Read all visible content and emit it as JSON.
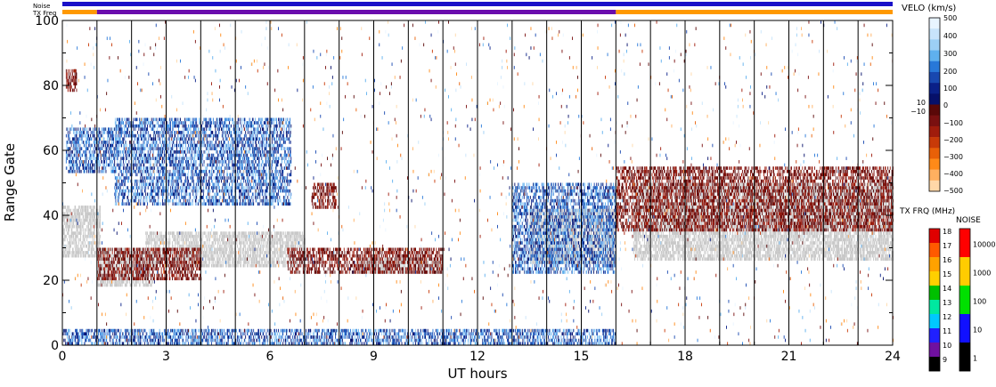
{
  "chart_data": {
    "type": "heatmap",
    "xlabel": "UT hours",
    "ylabel": "Range Gate",
    "xlim": [
      0,
      24
    ],
    "ylim": [
      0,
      100
    ],
    "x_ticks": [
      "0",
      "3",
      "6",
      "9",
      "12",
      "15",
      "18",
      "21",
      "24"
    ],
    "y_ticks": [
      "0",
      "20",
      "40",
      "60",
      "80",
      "100"
    ],
    "x_tick_values": [
      0,
      3,
      6,
      9,
      12,
      15,
      18,
      21,
      24
    ],
    "y_tick_values": [
      0,
      20,
      40,
      60,
      80,
      100
    ],
    "grid": "vertical lines each UT hour",
    "strip_labels": {
      "noise": "Noise",
      "txfreq": "TX Freq"
    },
    "strips": {
      "noise_color": "#1a10c8",
      "txfreq_segments": [
        {
          "from": 0,
          "to": 1,
          "color": "#ff9900"
        },
        {
          "from": 1,
          "to": 16,
          "color": "#6a0dad"
        },
        {
          "from": 16,
          "to": 24,
          "color": "#ff9900"
        }
      ]
    },
    "velocity_colorbar": {
      "label": "VELO (km/s)",
      "ticks": [
        "500",
        "400",
        "300",
        "200",
        "100",
        "10",
        "0",
        "−10",
        "−100",
        "−200",
        "−300",
        "−400",
        "−500"
      ],
      "colors": [
        "#e8f4ff",
        "#c8e4fb",
        "#9ccff5",
        "#5fb0ee",
        "#2878d8",
        "#1848b0",
        "#0a2088",
        "#06106a",
        "#5a0808",
        "#7a1010",
        "#a01c0c",
        "#c83a08",
        "#e86008",
        "#ff8a18",
        "#ffb060",
        "#ffd8a8"
      ],
      "ground_scatter_color": "#c8c8c8"
    },
    "txfreq_colorbar": {
      "label": "TX FRQ (MHz)",
      "ticks": [
        "18",
        "17",
        "16",
        "15",
        "14",
        "13",
        "12",
        "11",
        "10",
        "9"
      ],
      "colors": [
        "#e00000",
        "#ff5a00",
        "#ffa200",
        "#ffd000",
        "#00c000",
        "#00e8a0",
        "#00c8ff",
        "#2020ff",
        "#7010a0",
        "#000000"
      ]
    },
    "noise_colorbar": {
      "label": "NOISE",
      "ticks": [
        "10000",
        "1000",
        "100",
        "10",
        "1"
      ],
      "colors": [
        "#ff0000",
        "#ffcc00",
        "#00e000",
        "#1010ff",
        "#000000"
      ]
    },
    "regions": [
      {
        "type": "ground",
        "t0": 0.0,
        "t1": 1.1,
        "g0": 27,
        "g1": 43
      },
      {
        "type": "ground",
        "t0": 1.0,
        "t1": 2.6,
        "g0": 18,
        "g1": 30
      },
      {
        "type": "ground",
        "t0": 2.4,
        "t1": 7.0,
        "g0": 24,
        "g1": 35
      },
      {
        "type": "ground",
        "t0": 8.5,
        "t1": 11.0,
        "g0": 22,
        "g1": 27
      },
      {
        "type": "ground",
        "t0": 13.5,
        "t1": 16.0,
        "g0": 25,
        "g1": 42
      },
      {
        "type": "ground",
        "t0": 16.5,
        "t1": 24.0,
        "g0": 26,
        "g1": 50
      },
      {
        "type": "neg",
        "t0": 1.0,
        "t1": 4.0,
        "g0": 20,
        "g1": 30
      },
      {
        "type": "neg",
        "t0": 6.5,
        "t1": 11.0,
        "g0": 22,
        "g1": 30
      },
      {
        "type": "neg",
        "t0": 7.2,
        "t1": 7.9,
        "g0": 42,
        "g1": 50
      },
      {
        "type": "neg",
        "t0": 0.1,
        "t1": 0.4,
        "g0": 78,
        "g1": 85
      },
      {
        "type": "pos",
        "t0": 0.1,
        "t1": 1.5,
        "g0": 53,
        "g1": 67
      },
      {
        "type": "pos",
        "t0": 1.5,
        "t1": 6.6,
        "g0": 43,
        "g1": 70
      },
      {
        "type": "pos",
        "t0": 13.0,
        "t1": 16.0,
        "g0": 22,
        "g1": 50
      },
      {
        "type": "pos",
        "t0": 0.0,
        "t1": 16.0,
        "g0": 0,
        "g1": 5
      },
      {
        "type": "neg",
        "t0": 16.0,
        "t1": 24.0,
        "g0": 35,
        "g1": 55
      },
      {
        "type": "mix",
        "t0": 0.0,
        "t1": 24.0,
        "g0": 0,
        "g1": 100
      }
    ]
  }
}
